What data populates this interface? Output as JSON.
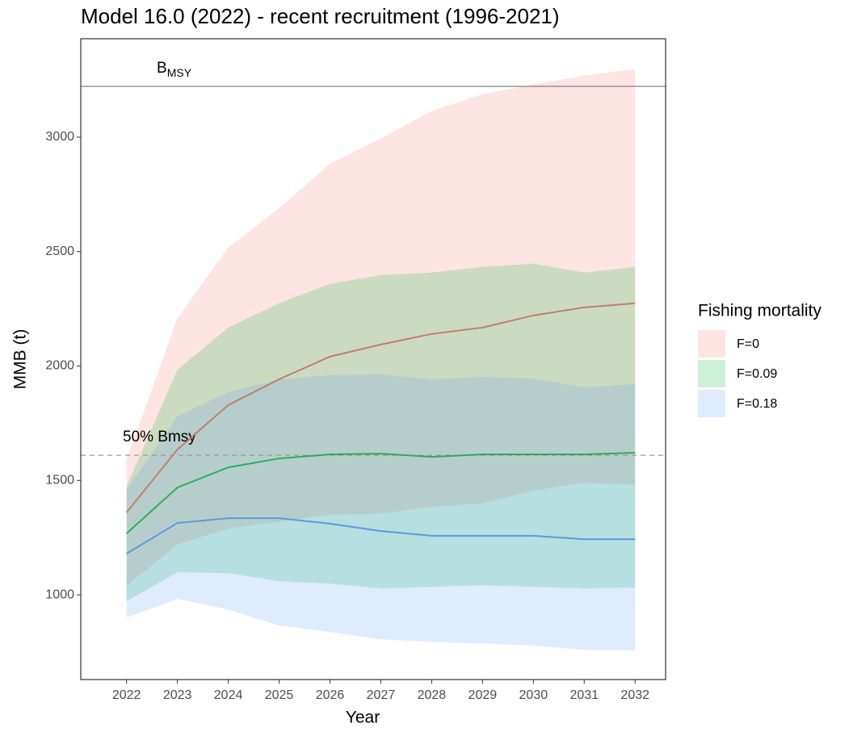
{
  "chart_data": {
    "type": "ribbon-line",
    "title": "Model 16.0 (2022) - recent recruitment (1996-2021)",
    "x_label": "Year",
    "y_label": "MMB (t)",
    "x": [
      2022,
      2023,
      2024,
      2025,
      2026,
      2027,
      2028,
      2029,
      2030,
      2031,
      2032
    ],
    "xlim": [
      2021.1,
      2032.6
    ],
    "xticks": [
      2022,
      2023,
      2024,
      2025,
      2026,
      2027,
      2028,
      2029,
      2030,
      2031,
      2032
    ],
    "ylim": [
      630,
      3430
    ],
    "yticks": [
      1000,
      1500,
      2000,
      2500,
      3000
    ],
    "grid": false,
    "fill_opacity": 0.2,
    "legend_title": "Fishing mortality",
    "legend_position": "right",
    "series": [
      {
        "name": "F=0",
        "color": "#F8766D",
        "line_color": "#C87B6C",
        "values": [
          1360,
          1635,
          1829,
          1942,
          2041,
          2094,
          2140,
          2168,
          2221,
          2256,
          2274
        ],
        "upper": [
          1590,
          2207,
          2517,
          2690,
          2884,
          2994,
          3114,
          3188,
          3230,
          3269,
          3297
        ],
        "lower": [
          1040,
          1220,
          1290,
          1320,
          1350,
          1355,
          1385,
          1400,
          1455,
          1490,
          1480
        ]
      },
      {
        "name": "F=0.09",
        "color": "#00BA38",
        "line_color": "#2BAE58",
        "values": [
          1268,
          1469,
          1557,
          1596,
          1614,
          1617,
          1603,
          1614,
          1614,
          1614,
          1621
        ],
        "upper": [
          1473,
          1984,
          2168,
          2274,
          2359,
          2397,
          2408,
          2433,
          2447,
          2408,
          2433
        ],
        "lower": [
          972,
          1099,
          1095,
          1060,
          1049,
          1028,
          1035,
          1042,
          1035,
          1028,
          1032
        ]
      },
      {
        "name": "F=0.18",
        "color": "#619CFF",
        "line_color": "#5A9BE0",
        "values": [
          1180,
          1314,
          1335,
          1335,
          1311,
          1279,
          1258,
          1258,
          1258,
          1243,
          1243
        ],
        "upper": [
          1460,
          1780,
          1886,
          1942,
          1960,
          1963,
          1942,
          1953,
          1946,
          1907,
          1921
        ],
        "lower": [
          901,
          982,
          936,
          866,
          838,
          806,
          795,
          788,
          778,
          760,
          757
        ]
      }
    ],
    "reference_lines": [
      {
        "value": 3222,
        "label": "B",
        "label_sub": "MSY",
        "dashed": false,
        "color": "#808080"
      },
      {
        "value": 1610,
        "label": "50% Bmsy",
        "dashed": true,
        "color": "#999999"
      }
    ]
  }
}
